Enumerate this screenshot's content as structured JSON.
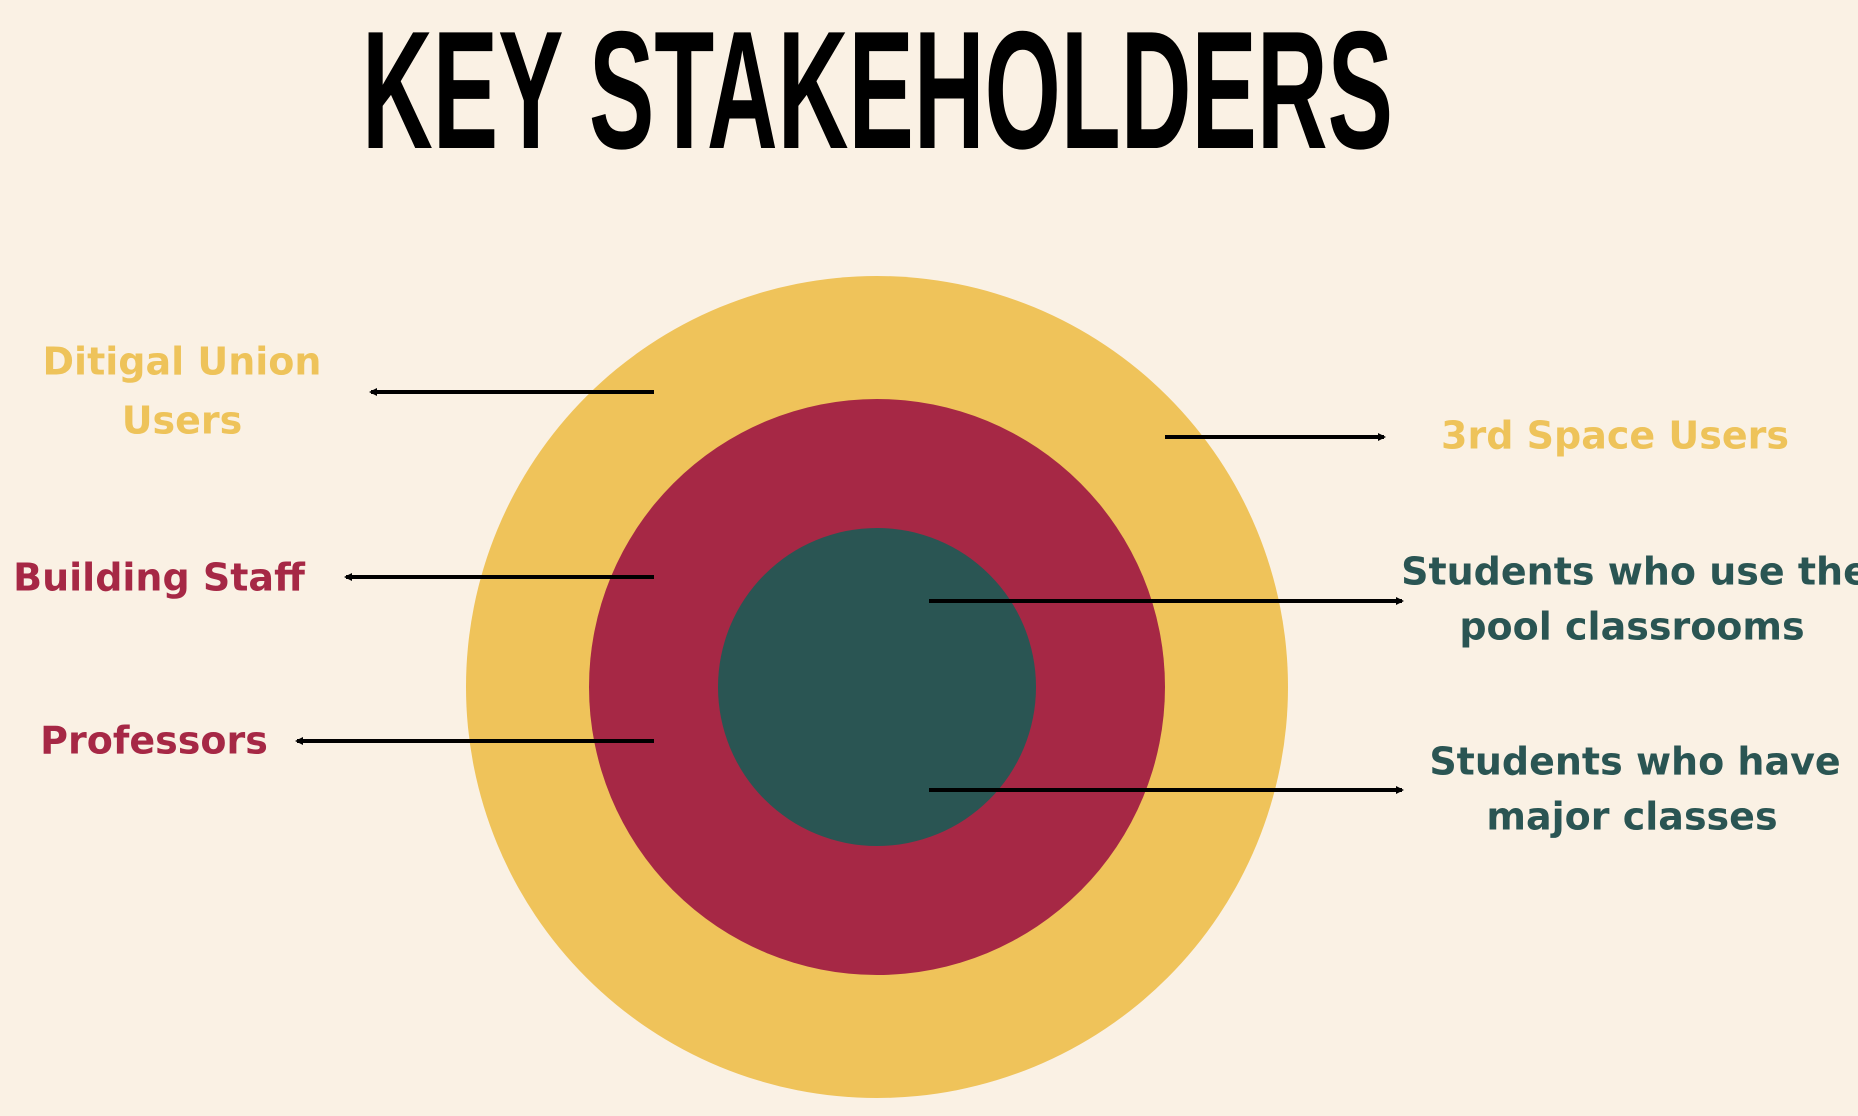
{
  "title": "KEY STAKEHOLDERS",
  "labels": [
    {
      "lines": [
        "Ditigal Union",
        "Users"
      ]
    },
    {
      "lines": [
        "Building Staff"
      ]
    },
    {
      "lines": [
        "Professors"
      ]
    },
    {
      "lines": [
        "3rd Space Users"
      ]
    },
    {
      "lines": [
        "Students who use the",
        "pool classrooms"
      ]
    },
    {
      "lines": [
        "Students who have",
        "major classes"
      ]
    }
  ]
}
